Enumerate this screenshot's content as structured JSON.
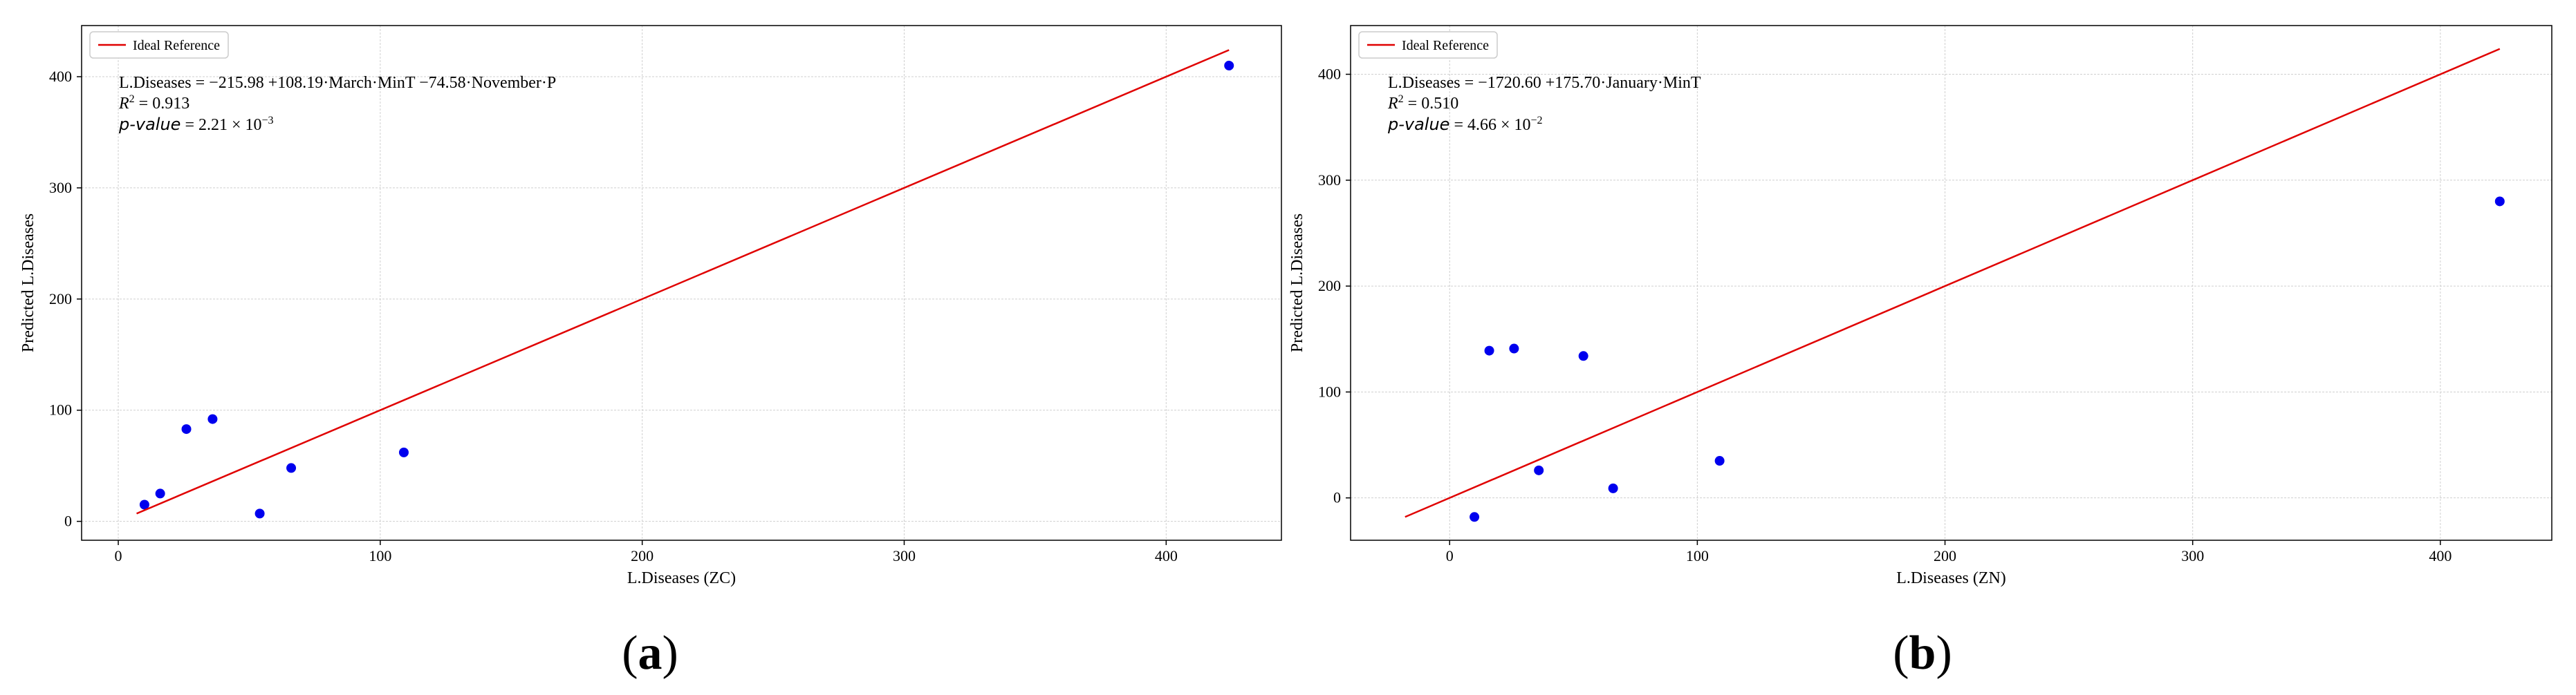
{
  "figure_labels": [
    {
      "open": "(",
      "letter": "a",
      "close": ")"
    },
    {
      "open": "(",
      "letter": "b",
      "close": ")"
    }
  ],
  "chart_data": [
    {
      "type": "scatter",
      "xlabel": "L.Diseases (ZC)",
      "ylabel": "Predicted L.Diseases",
      "xlim": [
        -14,
        444
      ],
      "ylim": [
        -17,
        446
      ],
      "xticks": [
        0,
        100,
        200,
        300,
        400
      ],
      "yticks": [
        0,
        100,
        200,
        300,
        400
      ],
      "grid": true,
      "legend": {
        "placement": "top-left",
        "entries": [
          {
            "label": "Ideal Reference",
            "color": "#e00000"
          }
        ]
      },
      "annotation": {
        "equation": "L.Diseases = −215.98 +108.19·March·MinT −74.58·November·P",
        "r2_symbol": "R",
        "r2_exp": "2",
        "r2_value": " = 0.913",
        "p_symbol": "p-value",
        "p_value": " = 2.21 × 10",
        "p_exp": "−3"
      },
      "series": [
        {
          "name": "",
          "kind": "points",
          "color": "#0000ee",
          "x": [
            10,
            16,
            26,
            36,
            54,
            66,
            109,
            424
          ],
          "y": [
            15,
            25,
            83,
            92,
            7,
            48,
            62,
            410
          ]
        },
        {
          "name": "Ideal Reference",
          "kind": "line",
          "color": "#e00000",
          "x": [
            7,
            424
          ],
          "y": [
            7,
            424
          ]
        }
      ]
    },
    {
      "type": "scatter",
      "xlabel": "L.Diseases (ZN)",
      "ylabel": "Predicted L.Diseases",
      "xlim": [
        -40,
        445
      ],
      "ylim": [
        -40,
        446
      ],
      "xticks": [
        0,
        100,
        200,
        300,
        400
      ],
      "yticks": [
        0,
        100,
        200,
        300,
        400
      ],
      "grid": true,
      "legend": {
        "placement": "top-left",
        "entries": [
          {
            "label": "Ideal Reference",
            "color": "#e00000"
          }
        ]
      },
      "annotation": {
        "equation": "L.Diseases = −1720.60 +175.70·January·MinT",
        "r2_symbol": "R",
        "r2_exp": "2",
        "r2_value": " = 0.510",
        "p_symbol": "p-value",
        "p_value": " = 4.66 × 10",
        "p_exp": "−2"
      },
      "series": [
        {
          "name": "",
          "kind": "points",
          "color": "#0000ee",
          "x": [
            10,
            16,
            26,
            36,
            54,
            66,
            109,
            424
          ],
          "y": [
            -18,
            139,
            141,
            26,
            134,
            9,
            35,
            280
          ]
        },
        {
          "name": "Ideal Reference",
          "kind": "line",
          "color": "#e00000",
          "x": [
            -18,
            424
          ],
          "y": [
            -18,
            424
          ]
        }
      ]
    }
  ]
}
